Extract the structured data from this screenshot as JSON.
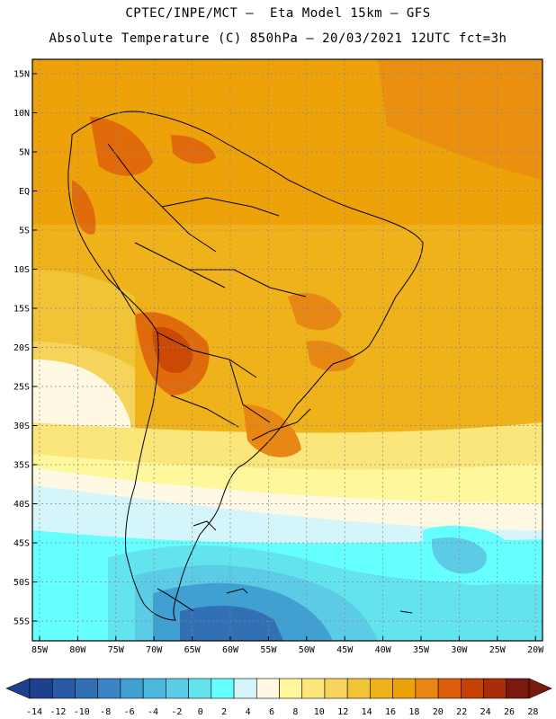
{
  "header": {
    "line1": "CPTEC/INPE/MCT –  Eta Model 15km – GFS",
    "line2": "Absolute Temperature (C) 850hPa – 20/03/2021 12UTC fct=3h"
  },
  "map": {
    "lat_labels": [
      "15N",
      "10N",
      "5N",
      "EQ",
      "5S",
      "10S",
      "15S",
      "20S",
      "25S",
      "30S",
      "35S",
      "40S",
      "45S",
      "50S",
      "55S"
    ],
    "lon_labels": [
      "85W",
      "80W",
      "75W",
      "70W",
      "65W",
      "60W",
      "55W",
      "50W",
      "45W",
      "40W",
      "35W",
      "30W",
      "25W",
      "20W"
    ]
  },
  "colorbar": {
    "labels": [
      "-14",
      "-12",
      "-10",
      "-8",
      "-6",
      "-4",
      "-2",
      "0",
      "2",
      "4",
      "6",
      "8",
      "10",
      "12",
      "14",
      "16",
      "18",
      "20",
      "22",
      "24",
      "26",
      "28"
    ],
    "colors": [
      "#1f3f8f",
      "#2a5aa6",
      "#3270b5",
      "#3a86c4",
      "#41a0d2",
      "#4db8de",
      "#5ccce6",
      "#63e3ee",
      "#66ffff",
      "#d4f6fb",
      "#fff8e3",
      "#fff79c",
      "#fbe67c",
      "#f6d45c",
      "#f1c337",
      "#efb21a",
      "#eea20a",
      "#e98714",
      "#dd5e0a",
      "#c64104",
      "#a82d08",
      "#7a1a0e"
    ]
  }
}
